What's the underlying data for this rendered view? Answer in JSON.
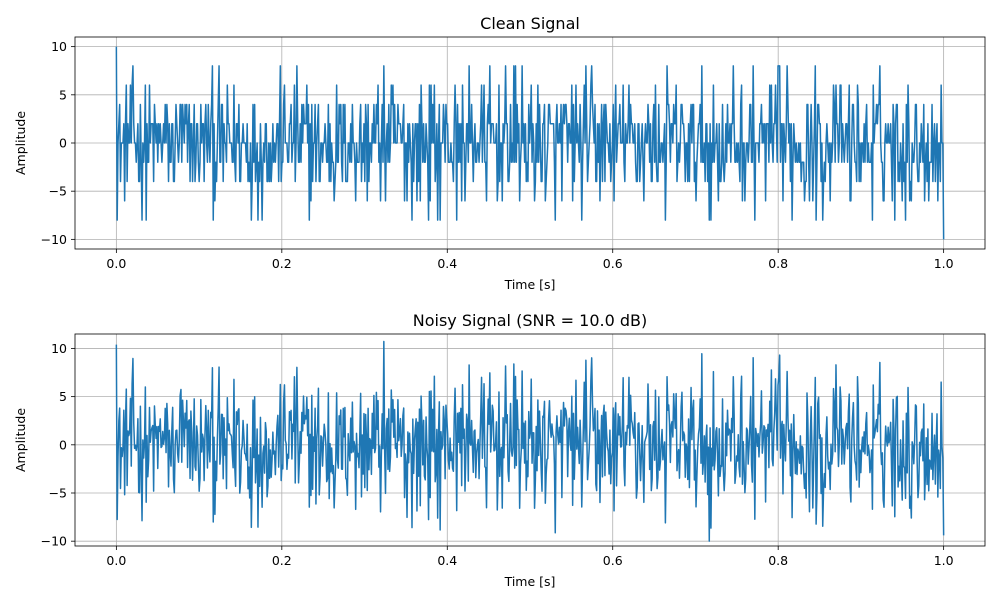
{
  "colors": {
    "line": "#1f77b4",
    "grid": "#b0b0b0",
    "axes": "#000000",
    "background": "#ffffff"
  },
  "chart_data": [
    {
      "type": "line",
      "title": "Clean Signal",
      "xlabel": "Time [s]",
      "ylabel": "Amplitude",
      "xlim": [
        -0.05,
        1.05
      ],
      "ylim": [
        -11,
        11
      ],
      "xticks": [
        0.0,
        0.2,
        0.4,
        0.6,
        0.8,
        1.0
      ],
      "xtick_labels": [
        "0.0",
        "0.2",
        "0.4",
        "0.6",
        "0.8",
        "1.0"
      ],
      "yticks": [
        10,
        5,
        0,
        -5,
        -10
      ],
      "ytick_labels": [
        "10",
        "5",
        "0",
        "−5",
        "−10"
      ],
      "grid": true,
      "series": [
        {
          "samples": 1000,
          "x_start": 0.0,
          "x_end": 1.0,
          "first_value": 10,
          "last_value": -10,
          "value_range": [
            -10,
            10
          ],
          "typical_levels": [
            -8,
            -6,
            -4,
            -2,
            0,
            2,
            4,
            6,
            8
          ]
        }
      ]
    },
    {
      "type": "line",
      "title": "Noisy Signal (SNR = 10.0 dB)",
      "xlabel": "Time [s]",
      "ylabel": "Amplitude",
      "xlim": [
        -0.05,
        1.05
      ],
      "ylim": [
        -10.5,
        11.5
      ],
      "xticks": [
        0.0,
        0.2,
        0.4,
        0.6,
        0.8,
        1.0
      ],
      "xtick_labels": [
        "0.0",
        "0.2",
        "0.4",
        "0.6",
        "0.8",
        "1.0"
      ],
      "yticks": [
        10,
        5,
        0,
        -5,
        -10
      ],
      "ytick_labels": [
        "10",
        "5",
        "0",
        "−5",
        "−10"
      ],
      "grid": true,
      "series": [
        {
          "samples": 1000,
          "x_start": 0.0,
          "x_end": 1.0,
          "first_value": 10.4,
          "last_value": -9.4,
          "value_range": [
            -9.4,
            10.4
          ],
          "noise_std": 1.0
        }
      ]
    }
  ]
}
